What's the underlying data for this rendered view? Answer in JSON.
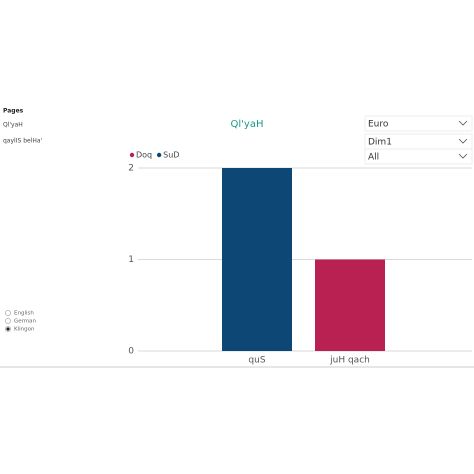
{
  "sidebar": {
    "title": "Pages",
    "pages": [
      "Ql'yaH",
      "qaylIS belHa'"
    ],
    "languages": [
      "English",
      "German",
      "Klingon"
    ],
    "selected_language": "Klingon"
  },
  "filters": [
    "Euro",
    "Dim1",
    "All"
  ],
  "chart_data": {
    "type": "bar",
    "title": "Ql'yaH",
    "categories": [
      "quS",
      "juH qach"
    ],
    "series": [
      {
        "name": "Doq",
        "color": "#b82152",
        "values": [
          null,
          1
        ]
      },
      {
        "name": "SuD",
        "color": "#0d4775",
        "values": [
          2,
          null
        ]
      }
    ],
    "ylim": [
      0,
      2
    ],
    "yticks": [
      0,
      1,
      2
    ],
    "grid": true
  }
}
